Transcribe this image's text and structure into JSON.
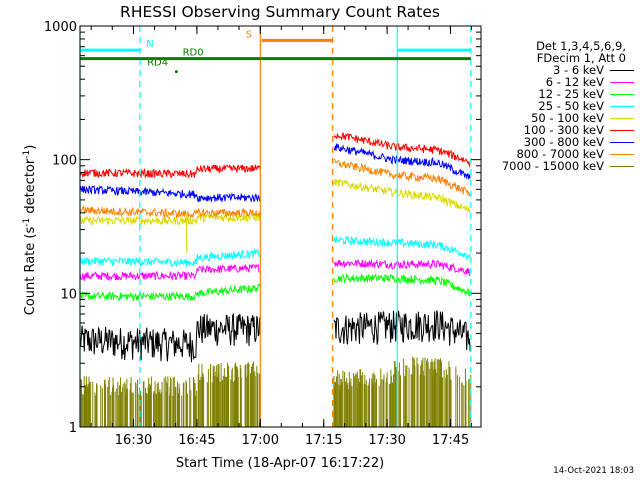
{
  "chart_data": {
    "type": "line",
    "title": "RHESSI Observing Summary Count Rates",
    "xlabel": "Start Time (18-Apr-07 16:17:22)",
    "ylabel_pre": "Count Rate (s",
    "ylabel_sup1": "-1",
    "ylabel_mid": " detector",
    "ylabel_sup2": "-1",
    "ylabel_post": ")",
    "yscale": "log",
    "xlim": [
      16.289,
      17.87
    ],
    "ylim": [
      1,
      1000
    ],
    "x_ticks": [
      {
        "value": 16.5,
        "label": "16:30"
      },
      {
        "value": 16.75,
        "label": "16:45"
      },
      {
        "value": 17.0,
        "label": "17:00"
      },
      {
        "value": 17.25,
        "label": "17:15"
      },
      {
        "value": 17.5,
        "label": "17:30"
      },
      {
        "value": 17.75,
        "label": "17:45"
      }
    ],
    "y_ticks": [
      {
        "value": 1,
        "label": "1"
      },
      {
        "value": 10,
        "label": "10"
      },
      {
        "value": 100,
        "label": "100"
      },
      {
        "value": 1000,
        "label": "1000"
      }
    ],
    "data_segments": [
      [
        16.289,
        17.0
      ],
      [
        17.29,
        17.83
      ]
    ],
    "attenuator_step": 16.75,
    "series": [
      {
        "name": "3 - 6 keV",
        "color": "#000000",
        "style": "noisy",
        "knots": [
          [
            16.289,
            4.5
          ],
          [
            16.75,
            4.2
          ],
          [
            16.751,
            5.5
          ],
          [
            17.0,
            5.5
          ],
          [
            17.29,
            5.5
          ],
          [
            17.52,
            5.8
          ],
          [
            17.7,
            6.0
          ],
          [
            17.83,
            4.6
          ]
        ]
      },
      {
        "name": "6 - 12 keV",
        "color": "#ff00ff",
        "style": "line",
        "knots": [
          [
            16.289,
            13.5
          ],
          [
            16.75,
            13.5
          ],
          [
            16.751,
            15
          ],
          [
            17.0,
            15.5
          ],
          [
            17.29,
            17
          ],
          [
            17.52,
            16.5
          ],
          [
            17.7,
            16.5
          ],
          [
            17.83,
            14.5
          ]
        ]
      },
      {
        "name": "12 - 25 keV",
        "color": "#00ff00",
        "style": "line",
        "knots": [
          [
            16.289,
            9.5
          ],
          [
            16.75,
            9.5
          ],
          [
            16.751,
            10
          ],
          [
            17.0,
            11
          ],
          [
            17.29,
            13
          ],
          [
            17.52,
            13
          ],
          [
            17.7,
            12.5
          ],
          [
            17.83,
            10
          ]
        ]
      },
      {
        "name": "25 - 50 keV",
        "color": "#00ffff",
        "style": "line",
        "knots": [
          [
            16.289,
            17.5
          ],
          [
            16.75,
            17
          ],
          [
            16.751,
            18.5
          ],
          [
            17.0,
            20
          ],
          [
            17.29,
            25
          ],
          [
            17.52,
            24
          ],
          [
            17.7,
            23
          ],
          [
            17.83,
            19
          ]
        ]
      },
      {
        "name": "50 - 100 keV",
        "color": "#d9d900",
        "style": "line",
        "knots": [
          [
            16.289,
            35
          ],
          [
            16.75,
            35
          ],
          [
            16.751,
            37
          ],
          [
            17.0,
            37
          ],
          [
            17.29,
            68
          ],
          [
            17.52,
            57
          ],
          [
            17.7,
            52
          ],
          [
            17.83,
            41
          ]
        ]
      },
      {
        "name": "100 - 300 keV",
        "color": "#ff0000",
        "style": "line",
        "knots": [
          [
            16.289,
            80
          ],
          [
            16.75,
            78
          ],
          [
            16.751,
            85
          ],
          [
            17.0,
            86
          ],
          [
            17.29,
            155
          ],
          [
            17.52,
            125
          ],
          [
            17.7,
            118
          ],
          [
            17.83,
            95
          ]
        ]
      },
      {
        "name": "300 - 800 keV",
        "color": "#0000ff",
        "style": "line",
        "knots": [
          [
            16.289,
            60
          ],
          [
            16.75,
            55
          ],
          [
            16.751,
            52
          ],
          [
            17.0,
            52
          ],
          [
            17.29,
            125
          ],
          [
            17.52,
            100
          ],
          [
            17.7,
            95
          ],
          [
            17.83,
            72
          ]
        ]
      },
      {
        "name": "800 - 7000 keV",
        "color": "#ff8000",
        "style": "line",
        "knots": [
          [
            16.289,
            42
          ],
          [
            16.75,
            39
          ],
          [
            16.751,
            40
          ],
          [
            17.0,
            40
          ],
          [
            17.29,
            95
          ],
          [
            17.52,
            77
          ],
          [
            17.7,
            72
          ],
          [
            17.83,
            55
          ]
        ]
      },
      {
        "name": "7000 - 15000 keV",
        "color": "#808000",
        "style": "bars",
        "knots": [
          [
            16.289,
            2.0
          ],
          [
            16.75,
            2.0
          ],
          [
            16.751,
            2.5
          ],
          [
            17.0,
            2.6
          ],
          [
            17.29,
            2.2
          ],
          [
            17.52,
            2.4
          ],
          [
            17.53,
            2.8
          ],
          [
            17.7,
            2.8
          ],
          [
            17.83,
            2.3
          ]
        ]
      }
    ],
    "vertical_markers": [
      {
        "x": 16.289,
        "color": "#00ffff",
        "style": "solid"
      },
      {
        "x": 16.525,
        "color": "#00ffff",
        "style": "dashed"
      },
      {
        "x": 17.0,
        "color": "#ff8000",
        "style": "solid"
      },
      {
        "x": 17.285,
        "color": "#ff8000",
        "style": "dashed"
      },
      {
        "x": 17.54,
        "color": "#00ffff",
        "style": "solid"
      },
      {
        "x": 17.83,
        "color": "#00ffff",
        "style": "dashed"
      },
      {
        "x": 16.71,
        "color": "#d9d900",
        "style": "solid",
        "y_from": 20,
        "y_to": 40
      }
    ],
    "flag_bars": [
      {
        "label": "N",
        "color": "#00ffff",
        "x0": 16.289,
        "x1": 16.53,
        "y": 660,
        "label_x": 16.565
      },
      {
        "label": "N",
        "color": "#00ffff",
        "x0": 17.54,
        "x1": 17.83,
        "y": 660,
        "label_x": null
      },
      {
        "label": "S",
        "color": "#ff8000",
        "x0": 17.005,
        "x1": 17.285,
        "y": 780,
        "label_x": 16.955
      },
      {
        "label": "RD0",
        "color": "#008000",
        "x0": 16.289,
        "x1": 17.83,
        "y": 570,
        "label_x": 16.735
      },
      {
        "label": "RD4",
        "color": "#008000",
        "x0": null,
        "x1": null,
        "y": 480,
        "label_x": 16.595
      }
    ],
    "legend_header": [
      "Det 1,3,4,5,6,9,",
      "FDecim 1, Att 0"
    ],
    "legend_placement": "right"
  },
  "footer_date": "14-Oct-2021 18:03"
}
